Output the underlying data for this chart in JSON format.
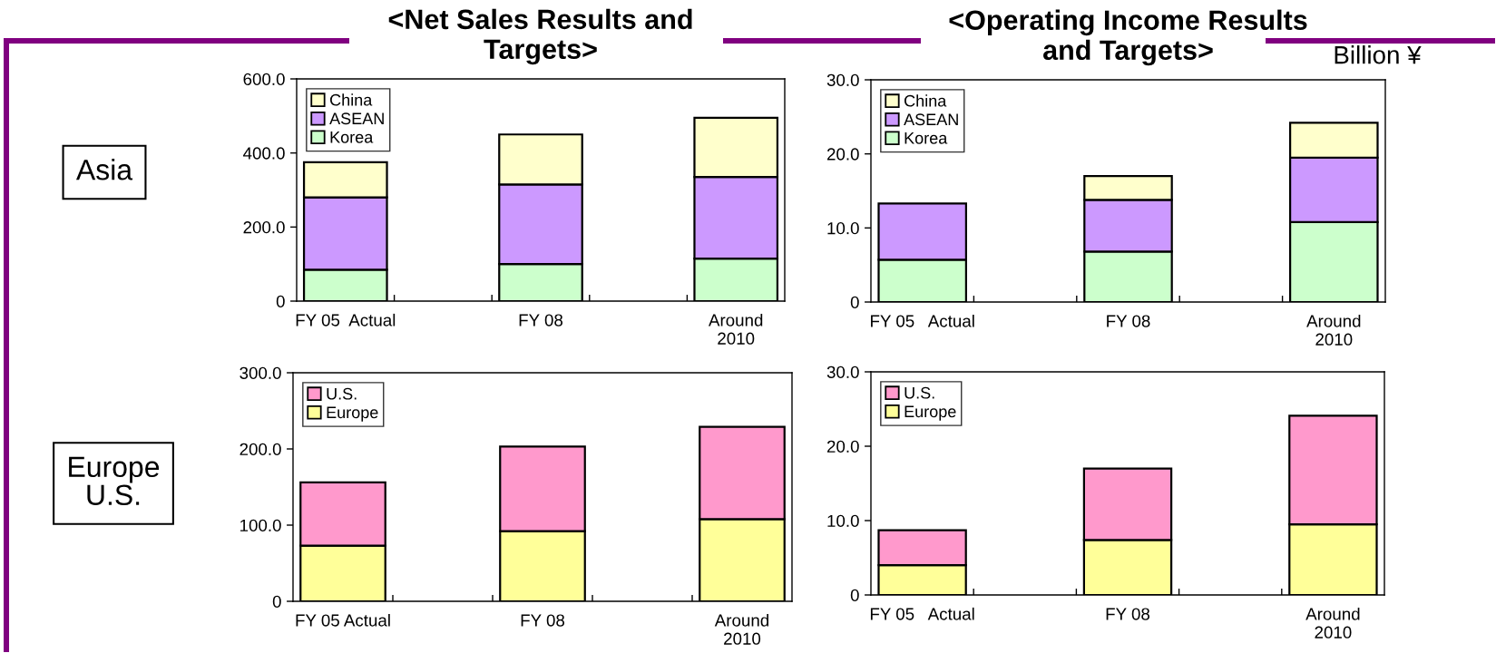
{
  "chart_data": [
    {
      "type": "bar",
      "stacked": true,
      "title": "<Net Sales Results and\nTargets>",
      "categories": [
        "FY 05  Actual",
        null,
        "FY 08",
        null,
        "Around\n2010"
      ],
      "series": [
        {
          "name": "Korea",
          "color": "#ccffcc",
          "values": [
            85,
            null,
            100,
            null,
            115
          ]
        },
        {
          "name": "ASEAN",
          "color": "#cc99ff",
          "values": [
            195,
            null,
            215,
            null,
            220
          ]
        },
        {
          "name": "China",
          "color": "#ffffcc",
          "values": [
            95,
            null,
            135,
            null,
            160
          ]
        }
      ],
      "ylim": [
        0,
        600
      ],
      "yticks": [
        0,
        {
          "value": 200,
          "label": "200.0"
        },
        {
          "value": 400,
          "label": "400.0"
        },
        {
          "value": 600,
          "label": "600.0"
        }
      ],
      "legend": "top left",
      "annotations": [
        "Asia"
      ]
    },
    {
      "type": "bar",
      "stacked": true,
      "title": "<Operating Income Results\nand Targets>",
      "categories": [
        "FY 05   Actual",
        null,
        "FY 08",
        null,
        "Around\n2010"
      ],
      "series": [
        {
          "name": "Korea",
          "color": "#ccffcc",
          "values": [
            5.7,
            null,
            6.8,
            null,
            10.8
          ]
        },
        {
          "name": "ASEAN",
          "color": "#cc99ff",
          "values": [
            7.6,
            null,
            7.0,
            null,
            8.7
          ]
        },
        {
          "name": "China",
          "color": "#ffffcc",
          "values": [
            null,
            null,
            3.2,
            null,
            4.7
          ]
        }
      ],
      "ylim": [
        0,
        30
      ],
      "yticks": [
        0,
        {
          "value": 10,
          "label": "10.0"
        },
        {
          "value": 20,
          "label": "20.0"
        },
        {
          "value": 30,
          "label": "30.0"
        }
      ],
      "legend": "top left",
      "annotations": [
        "Billion ¥"
      ]
    },
    {
      "type": "bar",
      "stacked": true,
      "categories": [
        "FY 05 Actual",
        null,
        "FY 08",
        null,
        "Around\n2010"
      ],
      "series": [
        {
          "name": "Europe",
          "color": "#ffff99",
          "values": [
            73,
            null,
            92,
            null,
            108
          ]
        },
        {
          "name": "U.S.",
          "color": "#ff99cc",
          "values": [
            83,
            null,
            111,
            null,
            121
          ]
        }
      ],
      "ylim": [
        0,
        300
      ],
      "yticks": [
        0,
        {
          "value": 100,
          "label": "100.0"
        },
        {
          "value": 200,
          "label": "200.0"
        },
        {
          "value": 300,
          "label": "300.0"
        }
      ],
      "legend": "top left",
      "annotations": [
        "Europe\nU.S."
      ]
    },
    {
      "type": "bar",
      "stacked": true,
      "categories": [
        "FY 05   Actual",
        null,
        "FY 08",
        null,
        "Around\n2010"
      ],
      "series": [
        {
          "name": "Europe",
          "color": "#ffff99",
          "values": [
            4.0,
            null,
            7.4,
            null,
            9.5
          ]
        },
        {
          "name": "U.S.",
          "color": "#ff99cc",
          "values": [
            4.7,
            null,
            9.6,
            null,
            14.6
          ]
        }
      ],
      "ylim": [
        0,
        30
      ],
      "yticks": [
        0,
        {
          "value": 10,
          "label": "10.0"
        },
        {
          "value": 20,
          "label": "20.0"
        },
        {
          "value": 30,
          "label": "30.0"
        }
      ],
      "legend": "top left"
    }
  ]
}
